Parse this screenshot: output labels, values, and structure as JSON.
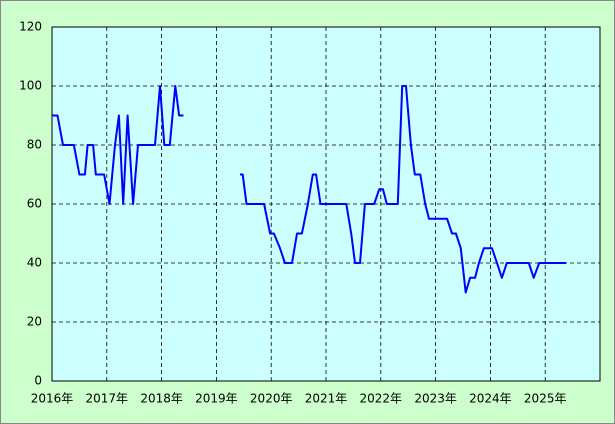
{
  "chart_data": {
    "type": "line",
    "x": [
      2016.0,
      2016.1,
      2016.2,
      2016.4,
      2016.5,
      2016.6,
      2016.65,
      2016.75,
      2016.8,
      2016.95,
      2017.05,
      2017.15,
      2017.22,
      2017.3,
      2017.38,
      2017.48,
      2017.57,
      2017.88,
      2017.97,
      2018.05,
      2018.15,
      2018.25,
      2018.32,
      2018.4,
      2019.0,
      2019.43,
      2019.48,
      2019.55,
      2019.87,
      2019.98,
      2020.05,
      2020.16,
      2020.25,
      2020.38,
      2020.47,
      2020.56,
      2020.67,
      2020.76,
      2020.82,
      2020.9,
      2021.37,
      2021.46,
      2021.53,
      2021.62,
      2021.71,
      2021.88,
      2021.97,
      2022.04,
      2022.11,
      2022.31,
      2022.39,
      2022.46,
      2022.55,
      2022.62,
      2022.72,
      2022.81,
      2022.88,
      2023.21,
      2023.3,
      2023.37,
      2023.46,
      2023.55,
      2023.63,
      2023.72,
      2023.79,
      2023.88,
      2024.03,
      2024.12,
      2024.21,
      2024.3,
      2024.7,
      2024.79,
      2024.89,
      2025.38
    ],
    "series": [
      {
        "color": "#0000ff",
        "values": [
          90,
          90,
          80,
          80,
          70,
          70,
          80,
          80,
          70,
          70,
          60,
          80,
          90,
          60,
          90,
          60,
          80,
          80,
          100,
          80,
          80,
          100,
          90,
          90,
          null,
          70,
          70,
          60,
          60,
          50,
          50,
          45,
          40,
          40,
          50,
          50,
          60,
          70,
          70,
          60,
          60,
          50,
          40,
          40,
          60,
          60,
          65,
          65,
          60,
          60,
          100,
          100,
          80,
          70,
          70,
          60,
          55,
          55,
          50,
          50,
          45,
          30,
          35,
          35,
          40,
          45,
          45,
          40,
          35,
          40,
          40,
          35,
          40,
          40
        ]
      }
    ],
    "xlim": [
      2016,
      2026
    ],
    "xticks": [
      {
        "value": 2016,
        "label": "2016年"
      },
      {
        "value": 2017,
        "label": "2017年"
      },
      {
        "value": 2018,
        "label": "2018年"
      },
      {
        "value": 2019,
        "label": "2019年"
      },
      {
        "value": 2020,
        "label": "2020年"
      },
      {
        "value": 2021,
        "label": "2021年"
      },
      {
        "value": 2022,
        "label": "2022年"
      },
      {
        "value": 2023,
        "label": "2023年"
      },
      {
        "value": 2024,
        "label": "2024年"
      },
      {
        "value": 2025,
        "label": "2025年"
      }
    ],
    "ylim": [
      0,
      120
    ],
    "yticks": [
      0,
      20,
      40,
      60,
      80,
      100,
      120
    ],
    "grid": true
  }
}
